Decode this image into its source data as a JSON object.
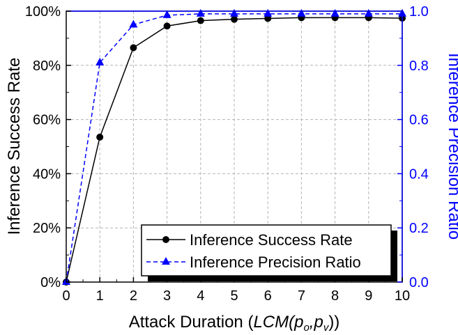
{
  "chart_data": {
    "type": "line",
    "xlabel_prefix": "Attack Duration (",
    "xlabel_italic": "LCM(p",
    "xlabel_sub1": "o",
    "xlabel_mid": ",p",
    "xlabel_sub2": "v",
    "xlabel_suffix": "))",
    "ylabel_left": "Inference Success Rate",
    "ylabel_right": "Inference Precision Ratio",
    "x": [
      0,
      1,
      2,
      3,
      4,
      5,
      6,
      7,
      8,
      9,
      10
    ],
    "xlim": [
      0,
      10
    ],
    "x_ticks": [
      "0",
      "1",
      "2",
      "3",
      "4",
      "5",
      "6",
      "7",
      "8",
      "9",
      "10"
    ],
    "ylim_left": [
      0,
      100
    ],
    "y_ticks_left": [
      "0%",
      "20%",
      "40%",
      "60%",
      "80%",
      "100%"
    ],
    "ylim_right": [
      0,
      1
    ],
    "y_ticks_right": [
      "0.0",
      "0.2",
      "0.4",
      "0.6",
      "0.8",
      "1.0"
    ],
    "grid": true,
    "legend_position": "bottom-right",
    "series": [
      {
        "name": "Inference Success Rate",
        "axis": "left",
        "color": "#000000",
        "marker": "circle",
        "line": "solid",
        "values": [
          0,
          53.5,
          86.5,
          94.5,
          96.5,
          97,
          97.3,
          97.6,
          97.6,
          97.6,
          97.4
        ]
      },
      {
        "name": "Inference Precision Ratio",
        "axis": "right",
        "color": "#0000ff",
        "marker": "triangle",
        "line": "dashed",
        "values": [
          0,
          0.81,
          0.95,
          0.985,
          0.99,
          0.99,
          0.99,
          0.99,
          0.99,
          0.99,
          0.99
        ]
      }
    ]
  }
}
